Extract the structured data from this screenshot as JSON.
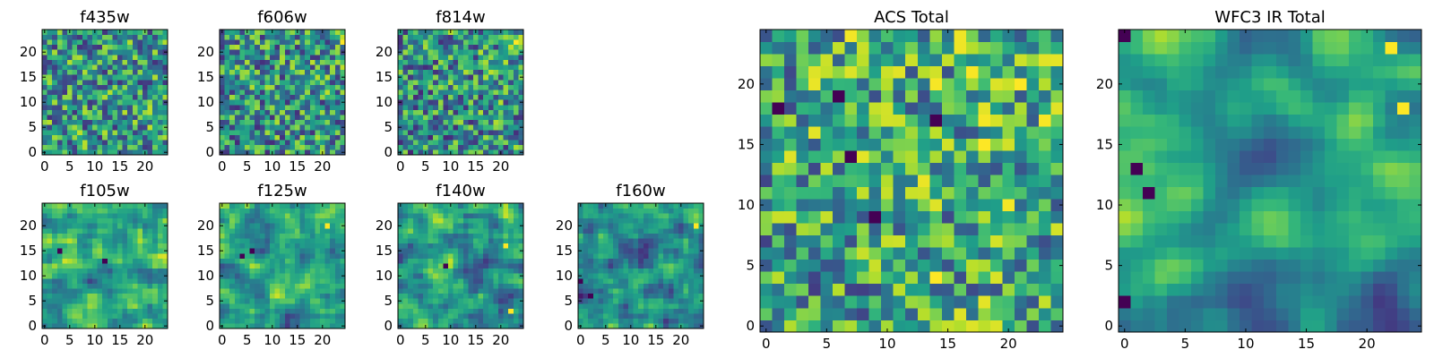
{
  "colormap": {
    "name": "viridis",
    "stops": [
      "#440154",
      "#482878",
      "#3e4989",
      "#31688e",
      "#26828e",
      "#1f9e89",
      "#35b779",
      "#6ece58",
      "#b5de2b",
      "#fde725"
    ]
  },
  "chart_data": [
    {
      "type": "heatmap",
      "title": "f435w",
      "grid_size": 25,
      "seed": 11,
      "smooth": 0,
      "bias": 0.0,
      "gradient": 0.0,
      "hot": [],
      "cold": [],
      "xticks": [
        0,
        5,
        10,
        15,
        20
      ],
      "yticks": [
        0,
        5,
        10,
        15,
        20
      ]
    },
    {
      "type": "heatmap",
      "title": "f606w",
      "grid_size": 25,
      "seed": 23,
      "smooth": 0,
      "bias": -0.02,
      "gradient": 0.05,
      "hot": [
        [
          24,
          22
        ]
      ],
      "cold": [],
      "xticks": [
        0,
        5,
        10,
        15,
        20
      ],
      "yticks": [
        0,
        5,
        10,
        15,
        20
      ]
    },
    {
      "type": "heatmap",
      "title": "f814w",
      "grid_size": 25,
      "seed": 37,
      "smooth": 0,
      "bias": -0.04,
      "gradient": 0.1,
      "hot": [
        [
          23,
          22
        ]
      ],
      "cold": [],
      "xticks": [
        0,
        5,
        10,
        15,
        20
      ],
      "yticks": [
        0,
        5,
        10,
        15,
        20
      ]
    },
    {
      "type": "heatmap",
      "title": "f105w",
      "grid_size": 25,
      "seed": 51,
      "smooth": 1,
      "bias": 0.05,
      "gradient": 0.0,
      "hot": [],
      "cold": [
        [
          12,
          13
        ],
        [
          3,
          15
        ]
      ],
      "xticks": [
        0,
        5,
        10,
        15,
        20
      ],
      "yticks": [
        0,
        5,
        10,
        15,
        20
      ]
    },
    {
      "type": "heatmap",
      "title": "f125w",
      "grid_size": 25,
      "seed": 64,
      "smooth": 1,
      "bias": 0.02,
      "gradient": 0.05,
      "hot": [
        [
          21,
          20
        ]
      ],
      "cold": [
        [
          4,
          14
        ],
        [
          6,
          15
        ]
      ],
      "xticks": [
        0,
        5,
        10,
        15,
        20
      ],
      "yticks": [
        0,
        5,
        10,
        15,
        20
      ]
    },
    {
      "type": "heatmap",
      "title": "f140w",
      "grid_size": 25,
      "seed": 78,
      "smooth": 1,
      "bias": 0.0,
      "gradient": 0.08,
      "hot": [
        [
          21,
          16
        ],
        [
          22,
          3
        ]
      ],
      "cold": [
        [
          9,
          12
        ]
      ],
      "xticks": [
        0,
        5,
        10,
        15,
        20
      ],
      "yticks": [
        0,
        5,
        10,
        15,
        20
      ]
    },
    {
      "type": "heatmap",
      "title": "f160w",
      "grid_size": 25,
      "seed": 92,
      "smooth": 1,
      "bias": -0.06,
      "gradient": 0.12,
      "hot": [
        [
          23,
          20
        ]
      ],
      "cold": [
        [
          0,
          9
        ],
        [
          2,
          6
        ]
      ],
      "xticks": [
        0,
        5,
        10,
        15,
        20
      ],
      "yticks": [
        0,
        5,
        10,
        15,
        20
      ]
    },
    {
      "type": "heatmap",
      "title": "ACS Total",
      "grid_size": 25,
      "seed": 105,
      "smooth": 0,
      "bias": 0.05,
      "gradient": 0.12,
      "hot": [
        [
          21,
          20
        ],
        [
          18,
          15
        ],
        [
          14,
          4
        ]
      ],
      "cold": [
        [
          1,
          18
        ],
        [
          7,
          14
        ],
        [
          6,
          19
        ],
        [
          14,
          17
        ],
        [
          9,
          9
        ]
      ],
      "xticks": [
        0,
        5,
        10,
        15,
        20
      ],
      "yticks": [
        0,
        5,
        10,
        15,
        20
      ]
    },
    {
      "type": "heatmap",
      "title": "WFC3 IR Total",
      "grid_size": 25,
      "seed": 118,
      "smooth": 2,
      "bias": 0.0,
      "gradient": 0.15,
      "hot": [
        [
          22,
          23
        ],
        [
          23,
          18
        ]
      ],
      "cold": [
        [
          0,
          24
        ],
        [
          1,
          13
        ],
        [
          2,
          11
        ],
        [
          0,
          2
        ]
      ],
      "xticks": [
        0,
        5,
        10,
        15,
        20
      ],
      "yticks": [
        0,
        5,
        10,
        15,
        20
      ]
    }
  ]
}
